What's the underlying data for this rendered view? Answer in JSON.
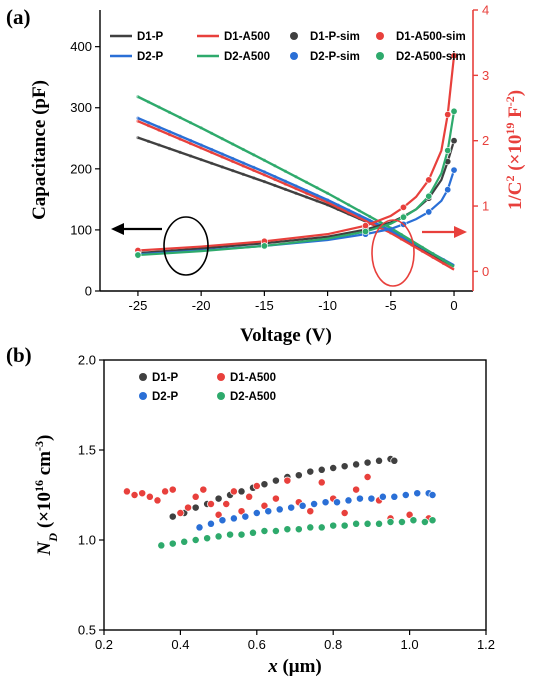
{
  "figure": {
    "panel_a_label": "(a)",
    "panel_b_label": "(b)"
  },
  "chart_data": [
    {
      "type": "line",
      "panel": "(a)",
      "xlabel": "Voltage (V)",
      "ylabel": "Capacitance (pF)",
      "y2label_main": "1/C",
      "y2label_sup1": "2",
      "y2label_mid": " (×10",
      "y2label_sup2": "19",
      "y2label_end": " F",
      "y2label_sup3": "-2",
      "y2label_close": ")",
      "xlim": [
        -28,
        1.5
      ],
      "ylim": [
        0,
        460
      ],
      "y2lim": [
        -0.3,
        4.0
      ],
      "xticks": [
        "-25",
        "-20",
        "-15",
        "-10",
        "-5",
        "0"
      ],
      "xtick_values": [
        -25,
        -20,
        -15,
        -10,
        -5,
        0
      ],
      "yticks": [
        "0",
        "100",
        "200",
        "300",
        "400"
      ],
      "ytick_values": [
        0,
        100,
        200,
        300,
        400
      ],
      "y2ticks": [
        "0",
        "1",
        "2",
        "3",
        "4"
      ],
      "y2tick_values": [
        0,
        1,
        2,
        3,
        4
      ],
      "legend_placement": "top",
      "legend": [
        {
          "name": "D1-P",
          "kind": "line",
          "color": "#404040"
        },
        {
          "name": "D1-A500",
          "kind": "line",
          "color": "#e8403c"
        },
        {
          "name": "D1-P-sim",
          "kind": "marker",
          "color": "#404040"
        },
        {
          "name": "D1-A500-sim",
          "kind": "marker",
          "color": "#e8403c"
        },
        {
          "name": "D2-P",
          "kind": "line",
          "color": "#2a6fd6"
        },
        {
          "name": "D2-A500",
          "kind": "line",
          "color": "#2eaa6c"
        },
        {
          "name": "D2-P-sim",
          "kind": "marker",
          "color": "#2a6fd6"
        },
        {
          "name": "D2-A500-sim",
          "kind": "marker",
          "color": "#2eaa6c"
        }
      ],
      "capacitance_series": [
        {
          "name": "D1-P",
          "color": "#404040",
          "x": [
            -25,
            -20,
            -15,
            -10,
            -5,
            0
          ],
          "y": [
            251,
            215,
            179,
            141,
            96,
            40
          ]
        },
        {
          "name": "D1-A500",
          "color": "#e8403c",
          "x": [
            -25,
            -20,
            -15,
            -10,
            -5,
            0
          ],
          "y": [
            278,
            234,
            190,
            145,
            95,
            35
          ]
        },
        {
          "name": "D2-P",
          "color": "#2a6fd6",
          "x": [
            -25,
            -20,
            -15,
            -10,
            -5,
            0
          ],
          "y": [
            283,
            239,
            195,
            149,
            99,
            42
          ]
        },
        {
          "name": "D2-A500",
          "color": "#2eaa6c",
          "x": [
            -25,
            -20,
            -15,
            -10,
            -5,
            0
          ],
          "y": [
            318,
            267,
            214,
            160,
            103,
            40
          ]
        }
      ],
      "inverse_c2_series": [
        {
          "name": "D1-P",
          "color": "#404040",
          "x": [
            -25,
            -20,
            -15,
            -10,
            -7,
            -5,
            -4,
            -3,
            -2,
            -1,
            -0.5,
            0
          ],
          "y": [
            0.28,
            0.35,
            0.43,
            0.53,
            0.64,
            0.75,
            0.84,
            0.95,
            1.12,
            1.4,
            1.68,
            2.0
          ]
        },
        {
          "name": "D1-A500",
          "color": "#e8403c",
          "x": [
            -25,
            -20,
            -15,
            -10,
            -7,
            -5,
            -4,
            -3,
            -2,
            -1,
            -0.5,
            0
          ],
          "y": [
            0.32,
            0.38,
            0.46,
            0.57,
            0.7,
            0.85,
            0.98,
            1.14,
            1.4,
            1.85,
            2.4,
            3.3
          ]
        },
        {
          "name": "D2-P",
          "color": "#2a6fd6",
          "x": [
            -25,
            -20,
            -15,
            -10,
            -7,
            -5,
            -4,
            -3,
            -2,
            -1,
            -0.5,
            0
          ],
          "y": [
            0.26,
            0.32,
            0.39,
            0.48,
            0.57,
            0.65,
            0.72,
            0.8,
            0.91,
            1.08,
            1.25,
            1.55
          ]
        },
        {
          "name": "D2-A500",
          "color": "#2eaa6c",
          "x": [
            -25,
            -20,
            -15,
            -10,
            -7,
            -5,
            -4,
            -3,
            -2,
            -1,
            -0.5,
            0
          ],
          "y": [
            0.25,
            0.31,
            0.39,
            0.5,
            0.61,
            0.73,
            0.83,
            0.95,
            1.15,
            1.5,
            1.85,
            2.45
          ]
        }
      ]
    },
    {
      "type": "scatter",
      "panel": "(b)",
      "xlabel_italic": "x",
      "xlabel_rest": " (μm)",
      "ylabel_main": "N",
      "ylabel_sub": "D",
      "ylabel_mid": " (×10",
      "ylabel_sup1": "16",
      "ylabel_unit": " cm",
      "ylabel_sup2": "-3",
      "ylabel_close": ")",
      "xlim": [
        0.2,
        1.2
      ],
      "ylim": [
        0.5,
        2.0
      ],
      "xticks": [
        "0.2",
        "0.4",
        "0.6",
        "0.8",
        "1.0",
        "1.2"
      ],
      "xtick_values": [
        0.2,
        0.4,
        0.6,
        0.8,
        1.0,
        1.2
      ],
      "yticks": [
        "0.5",
        "1.0",
        "1.5",
        "2.0"
      ],
      "ytick_values": [
        0.5,
        1.0,
        1.5,
        2.0
      ],
      "legend_placement": "top-left",
      "series": [
        {
          "name": "D1-P",
          "color": "#404040",
          "x": [
            0.38,
            0.41,
            0.44,
            0.47,
            0.5,
            0.53,
            0.56,
            0.59,
            0.62,
            0.65,
            0.68,
            0.71,
            0.74,
            0.77,
            0.8,
            0.83,
            0.86,
            0.89,
            0.92,
            0.95,
            0.96
          ],
          "y": [
            1.13,
            1.15,
            1.18,
            1.2,
            1.23,
            1.25,
            1.27,
            1.29,
            1.31,
            1.33,
            1.35,
            1.36,
            1.38,
            1.39,
            1.4,
            1.41,
            1.42,
            1.43,
            1.44,
            1.45,
            1.44
          ]
        },
        {
          "name": "D1-A500",
          "color": "#e8403c",
          "x": [
            0.26,
            0.28,
            0.3,
            0.32,
            0.34,
            0.36,
            0.38,
            0.4,
            0.42,
            0.44,
            0.46,
            0.48,
            0.5,
            0.52,
            0.54,
            0.56,
            0.58,
            0.6,
            0.62,
            0.65,
            0.68,
            0.71,
            0.74,
            0.77,
            0.8,
            0.83,
            0.86,
            0.89,
            0.92,
            0.95,
            1.0,
            1.05
          ],
          "y": [
            1.27,
            1.25,
            1.26,
            1.24,
            1.22,
            1.27,
            1.28,
            1.15,
            1.18,
            1.24,
            1.28,
            1.2,
            1.14,
            1.2,
            1.27,
            1.16,
            1.24,
            1.3,
            1.19,
            1.23,
            1.33,
            1.21,
            1.16,
            1.32,
            1.23,
            1.15,
            1.28,
            1.35,
            1.22,
            1.12,
            1.14,
            1.12
          ]
        },
        {
          "name": "D2-P",
          "color": "#2a6fd6",
          "x": [
            0.45,
            0.48,
            0.51,
            0.54,
            0.57,
            0.6,
            0.63,
            0.66,
            0.69,
            0.72,
            0.75,
            0.78,
            0.81,
            0.84,
            0.87,
            0.9,
            0.93,
            0.96,
            0.99,
            1.02,
            1.05,
            1.06
          ],
          "y": [
            1.07,
            1.09,
            1.11,
            1.12,
            1.13,
            1.15,
            1.16,
            1.17,
            1.18,
            1.19,
            1.2,
            1.21,
            1.21,
            1.22,
            1.23,
            1.23,
            1.24,
            1.24,
            1.25,
            1.26,
            1.26,
            1.25
          ]
        },
        {
          "name": "D2-A500",
          "color": "#2eaa6c",
          "x": [
            0.35,
            0.38,
            0.41,
            0.44,
            0.47,
            0.5,
            0.53,
            0.56,
            0.59,
            0.62,
            0.65,
            0.68,
            0.71,
            0.74,
            0.77,
            0.8,
            0.83,
            0.86,
            0.89,
            0.92,
            0.95,
            0.98,
            1.01,
            1.04,
            1.06
          ],
          "y": [
            0.97,
            0.98,
            0.99,
            1.0,
            1.01,
            1.02,
            1.03,
            1.03,
            1.04,
            1.05,
            1.05,
            1.06,
            1.06,
            1.07,
            1.07,
            1.08,
            1.08,
            1.09,
            1.09,
            1.09,
            1.1,
            1.1,
            1.11,
            1.1,
            1.11
          ]
        }
      ]
    }
  ]
}
